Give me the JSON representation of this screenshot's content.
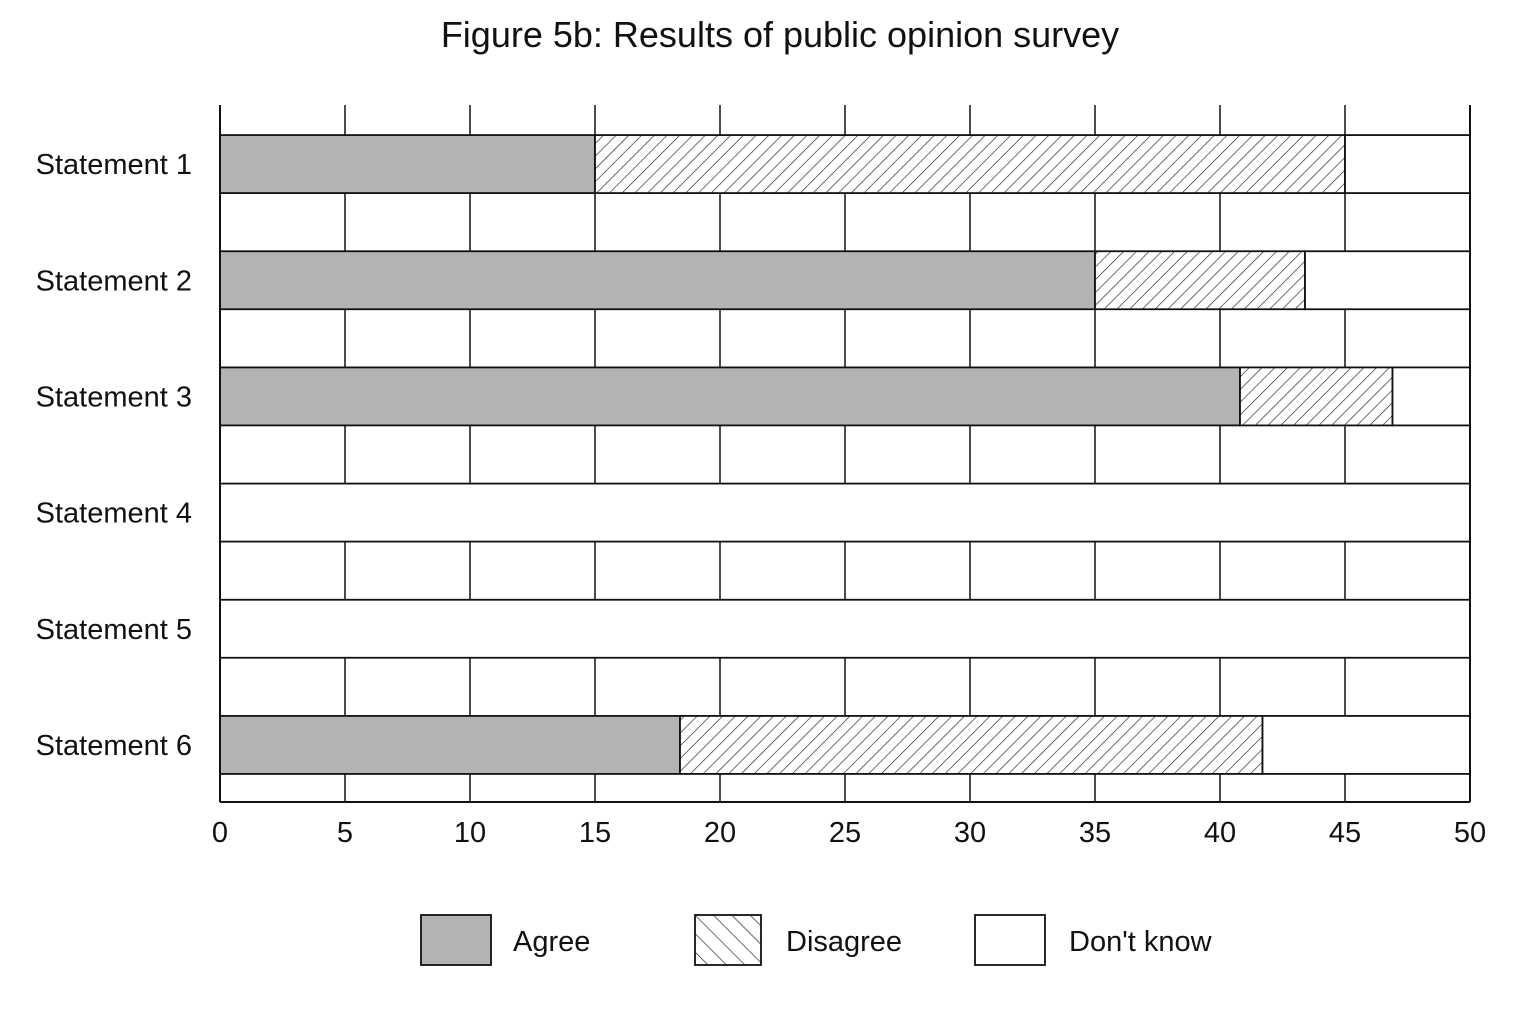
{
  "colors": {
    "agree": "#b3b3b3",
    "disagree_hatch": "#222222",
    "dont_know": "#ffffff",
    "line": "#111111"
  },
  "chart_data": {
    "type": "bar",
    "orientation": "horizontal",
    "stacked": true,
    "title": "Figure 5b: Results of public opinion survey",
    "categories": [
      "Statement 1",
      "Statement 2",
      "Statement 3",
      "Statement 4",
      "Statement 5",
      "Statement 6"
    ],
    "series": [
      {
        "name": "Agree",
        "pattern": "solid-grey",
        "values": [
          15,
          35,
          40.8,
          0,
          0,
          18.4
        ]
      },
      {
        "name": "Disagree",
        "pattern": "hatched",
        "values": [
          30,
          8.4,
          6.1,
          0,
          0,
          23.3
        ]
      },
      {
        "name": "Don't know",
        "pattern": "white",
        "values": [
          5,
          6.6,
          3.1,
          50,
          50,
          8.3
        ]
      }
    ],
    "xlim": [
      0,
      50
    ],
    "xticks": [
      "0",
      "5",
      "10",
      "15",
      "20",
      "25",
      "30",
      "35",
      "40",
      "45",
      "50"
    ],
    "xlabel": "",
    "ylabel": "",
    "grid": true,
    "legend_position": "bottom"
  }
}
